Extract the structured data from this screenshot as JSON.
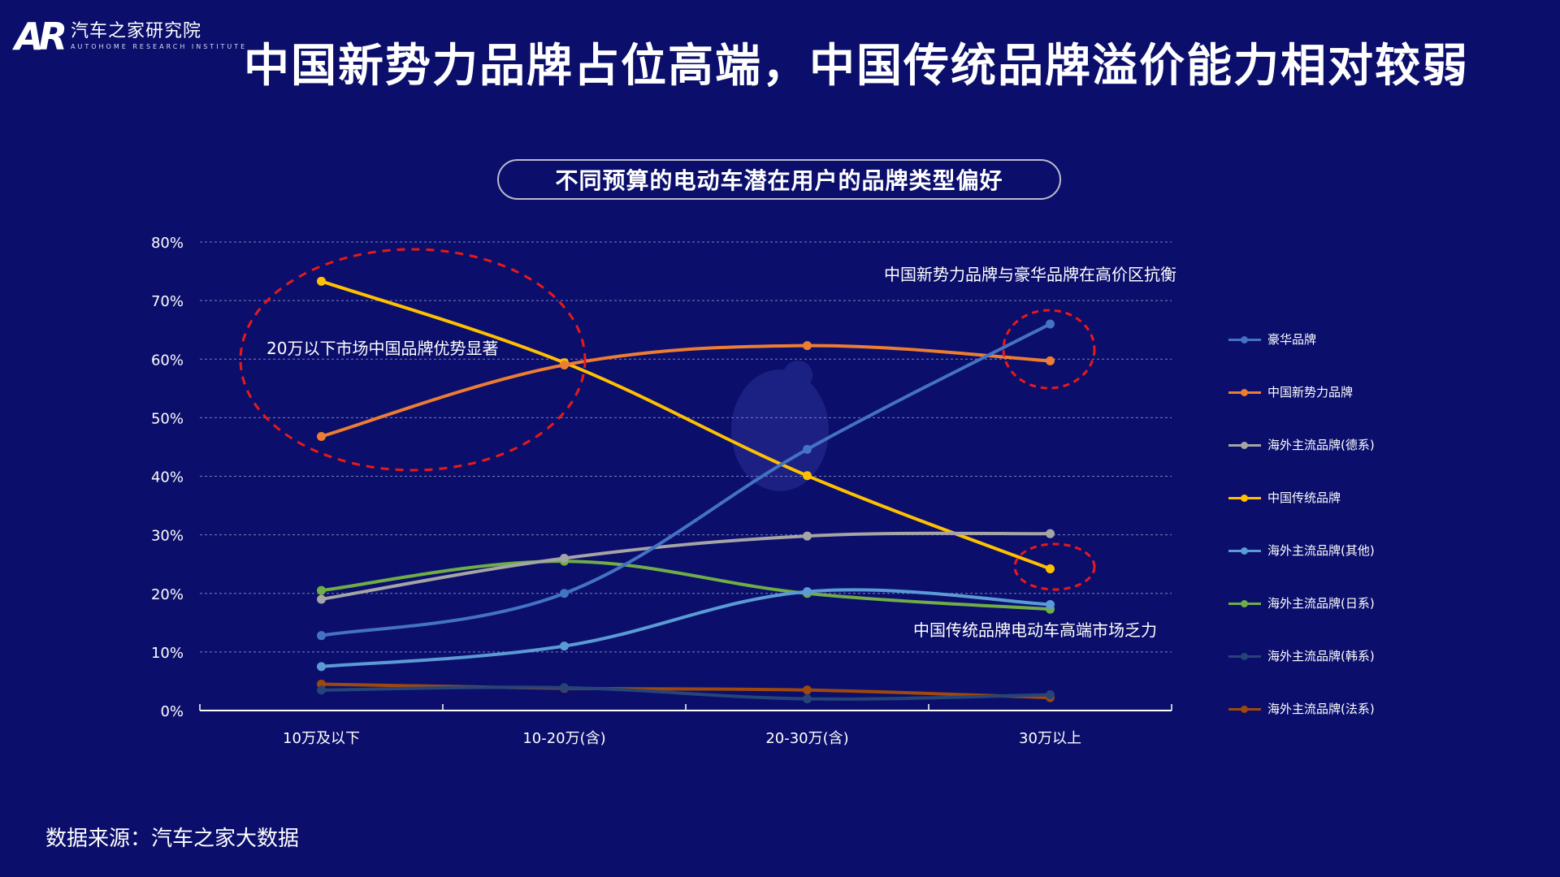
{
  "logo": {
    "mark": "AR",
    "name_cn": "汽车之家研究院",
    "name_en": "AUTOHOME RESEARCH INSTITUTE"
  },
  "title": "中国新势力品牌占位高端，中国传统品牌溢价能力相对较弱",
  "subtitle": "不同预算的电动车潜在用户的品牌类型偏好",
  "source": "数据来源：汽车之家大数据",
  "annotations": {
    "left": "20万以下市场中国品牌优势显著",
    "top_right": "中国新势力品牌与豪华品牌在高价区抗衡",
    "bottom_right": "中国传统品牌电动车高端市场乏力"
  },
  "chart_data": {
    "type": "line",
    "categories": [
      "10万及以下",
      "10-20万(含)",
      "20-30万(含)",
      "30万以上"
    ],
    "ylim": [
      0,
      80
    ],
    "yticks": [
      "0%",
      "10%",
      "20%",
      "30%",
      "40%",
      "50%",
      "60%",
      "70%",
      "80%"
    ],
    "grid": true,
    "legend_position": "right",
    "series": [
      {
        "name": "豪华品牌",
        "color": "#4472c4",
        "values": [
          12.8,
          20.0,
          44.6,
          66.0
        ]
      },
      {
        "name": "中国新势力品牌",
        "color": "#ed7d31",
        "values": [
          46.8,
          59.0,
          62.3,
          59.7
        ]
      },
      {
        "name": "海外主流品牌(德系)",
        "color": "#a5a5a5",
        "values": [
          19.0,
          26.0,
          29.8,
          30.2
        ]
      },
      {
        "name": "中国传统品牌",
        "color": "#ffc000",
        "values": [
          73.3,
          59.4,
          40.1,
          24.2
        ]
      },
      {
        "name": "海外主流品牌(其他)",
        "color": "#5b9bd5",
        "values": [
          7.5,
          11.0,
          20.3,
          18.1
        ]
      },
      {
        "name": "海外主流品牌(日系)",
        "color": "#70ad47",
        "values": [
          20.5,
          25.5,
          20.0,
          17.3
        ]
      },
      {
        "name": "海外主流品牌(韩系)",
        "color": "#264478",
        "values": [
          3.5,
          3.9,
          2.0,
          2.7
        ]
      },
      {
        "name": "海外主流品牌(法系)",
        "color": "#9e480e",
        "values": [
          4.5,
          3.8,
          3.5,
          2.2
        ]
      }
    ]
  }
}
